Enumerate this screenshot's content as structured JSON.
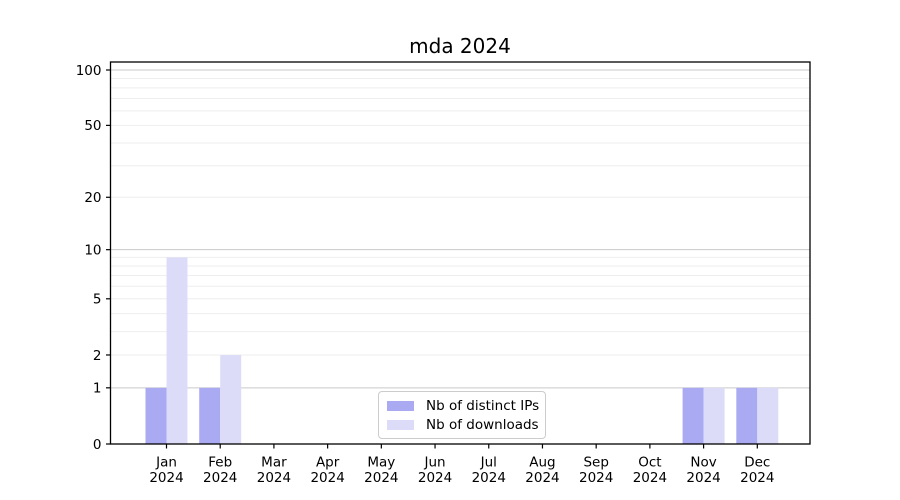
{
  "chart_data": {
    "type": "bar",
    "title": "mda 2024",
    "year": "2024",
    "categories": [
      "Jan",
      "Feb",
      "Mar",
      "Apr",
      "May",
      "Jun",
      "Jul",
      "Aug",
      "Sep",
      "Oct",
      "Nov",
      "Dec"
    ],
    "series": [
      {
        "name": "Nb of distinct IPs",
        "color": "#aaaaf3",
        "values": [
          1,
          1,
          0,
          0,
          0,
          0,
          0,
          0,
          0,
          0,
          1,
          1
        ]
      },
      {
        "name": "Nb of downloads",
        "color": "#dcdcf9",
        "values": [
          9,
          2,
          0,
          0,
          0,
          0,
          0,
          0,
          0,
          0,
          1,
          1
        ]
      }
    ],
    "y_axis": {
      "scale": "log1p",
      "tick_labels": [
        0,
        1,
        2,
        5,
        10,
        20,
        50,
        100
      ],
      "grid_major": [
        1,
        10,
        100
      ],
      "grid_minor": [
        2,
        3,
        4,
        5,
        6,
        7,
        8,
        9,
        20,
        30,
        40,
        50,
        60,
        70,
        80,
        90
      ],
      "range_max": 110
    },
    "legend_position": "bottom-center",
    "colors": {
      "grid_major": "#c9c9c9",
      "grid_minor": "#eeeeee",
      "axis": "#000000",
      "text": "#000000"
    }
  }
}
